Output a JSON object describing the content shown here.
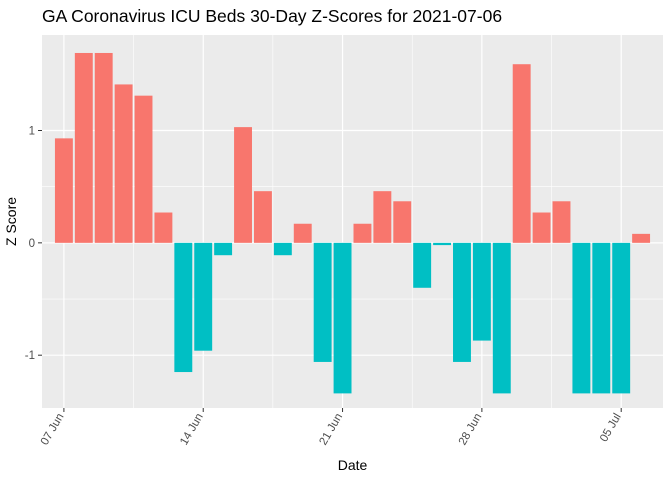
{
  "chart_data": {
    "type": "bar",
    "title": "GA Coronavirus ICU Beds 30-Day Z-Scores for 2021-07-06",
    "xlabel": "Date",
    "ylabel": "Z Score",
    "x_start": "2021-06-07",
    "x_end": "2021-07-06",
    "ylim": [
      -1.47,
      1.85
    ],
    "yticks": [
      -1,
      0,
      1
    ],
    "ytick_labels": [
      "-1",
      "0",
      "1"
    ],
    "xticks": [
      "2021-06-07",
      "2021-06-14",
      "2021-06-21",
      "2021-06-28",
      "2021-07-05"
    ],
    "xtick_labels": [
      "07 Jun",
      "14 Jun",
      "21 Jun",
      "28 Jun",
      "05 Jul"
    ],
    "grid": true,
    "legend": "none",
    "colors": {
      "positive": "#F8766D",
      "negative": "#00BFC4",
      "panel": "#EBEBEB",
      "grid": "#FFFFFF"
    },
    "dates": [
      "2021-06-07",
      "2021-06-08",
      "2021-06-09",
      "2021-06-10",
      "2021-06-11",
      "2021-06-12",
      "2021-06-13",
      "2021-06-14",
      "2021-06-15",
      "2021-06-16",
      "2021-06-17",
      "2021-06-18",
      "2021-06-19",
      "2021-06-20",
      "2021-06-21",
      "2021-06-22",
      "2021-06-23",
      "2021-06-24",
      "2021-06-25",
      "2021-06-26",
      "2021-06-27",
      "2021-06-28",
      "2021-06-29",
      "2021-06-30",
      "2021-07-01",
      "2021-07-02",
      "2021-07-03",
      "2021-07-04",
      "2021-07-05",
      "2021-07-06"
    ],
    "values": [
      0.93,
      1.69,
      1.69,
      1.41,
      1.31,
      0.27,
      -1.15,
      -0.96,
      -0.11,
      1.03,
      0.46,
      -0.11,
      0.17,
      -1.06,
      -1.34,
      0.17,
      0.46,
      0.37,
      -0.4,
      -0.02,
      -1.06,
      -0.87,
      -1.34,
      1.59,
      0.27,
      0.37,
      -1.34,
      -1.34,
      -1.34,
      0.08
    ]
  }
}
